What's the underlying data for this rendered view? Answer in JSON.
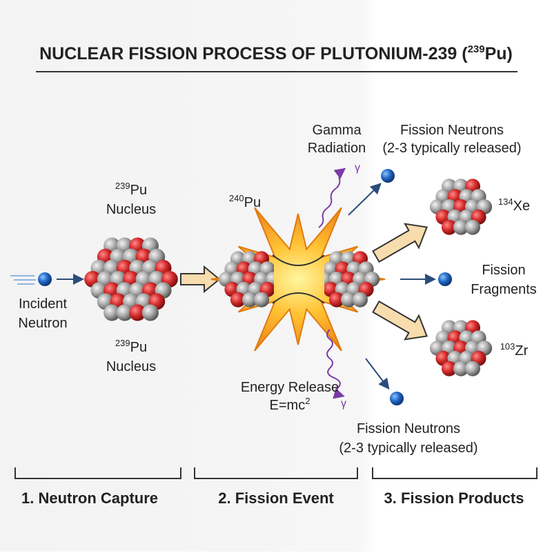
{
  "title": {
    "text": "NUCLEAR FISSION PROCESS OF PLUTONIUM-239 (",
    "mass": "239",
    "symbol": "Pu)"
  },
  "capture": {
    "incident_neutron": [
      "Incident",
      "Neutron"
    ],
    "nucleus_top": {
      "mass": "239",
      "symbol": "Pu",
      "label": "Nucleus"
    },
    "nucleus_bottom": {
      "mass": "239",
      "symbol": "Pu",
      "label": "Nucleus"
    }
  },
  "fission": {
    "compound": {
      "mass": "240",
      "symbol": "Pu"
    },
    "gamma_label": [
      "Gamma",
      "Radiation"
    ],
    "gamma_symbols": [
      "γ",
      "γ"
    ],
    "energy": {
      "line1": "Energy Release",
      "formula": "E=mc",
      "exponent": "2"
    }
  },
  "products": {
    "neutrons_top": [
      "Fission Neutrons",
      "(2-3 typically released)"
    ],
    "neutrons_bottom": [
      "Fission Neutrons",
      "(2-3 typically released)"
    ],
    "xenon": {
      "mass": "134",
      "symbol": "Xe"
    },
    "zirconium": {
      "mass": "103",
      "symbol": "Zr"
    },
    "fragments": [
      "Fission",
      "Fragments"
    ]
  },
  "stages": [
    "1. Neutron Capture",
    "2. Fission Event",
    "3. Fission Products"
  ]
}
